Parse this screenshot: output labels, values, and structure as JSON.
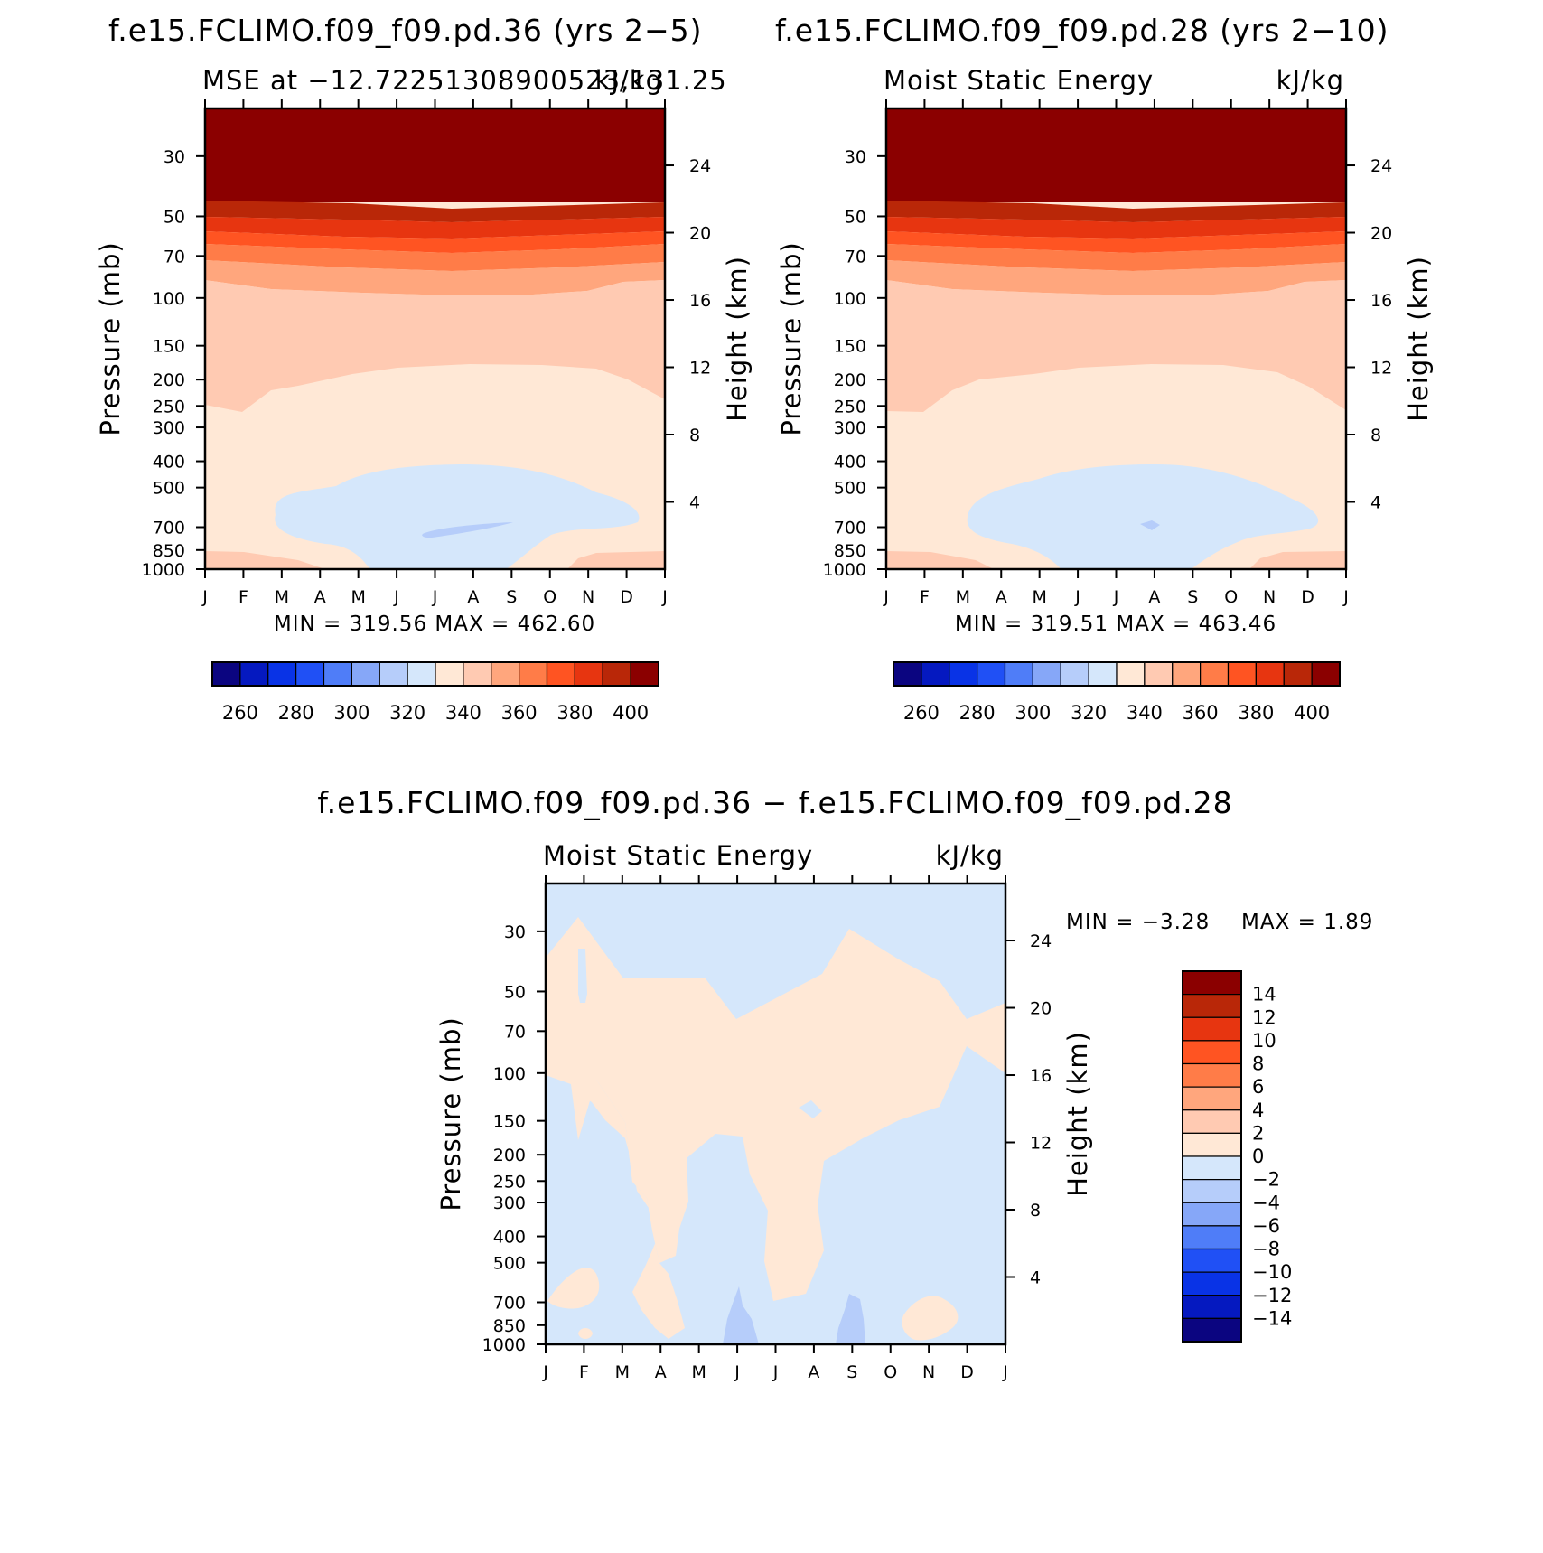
{
  "colors": {
    "mse_levels": [
      "#0b0580",
      "#0519c0",
      "#0933e6",
      "#2050f5",
      "#4f7df8",
      "#86a7f8",
      "#b6cdfa",
      "#d5e7fb",
      "#ffe8d6",
      "#ffcab2",
      "#ffa67d",
      "#ff7c48",
      "#ff5422",
      "#e73510",
      "#b92708",
      "#8b0000"
    ],
    "diff_levels": [
      "#0b0580",
      "#0519c0",
      "#0933e6",
      "#2050f5",
      "#4f7df8",
      "#86a7f8",
      "#b6cdfa",
      "#d5e7fb",
      "#ffe8d6",
      "#ffcab2",
      "#ffa67d",
      "#ff7c48",
      "#ff5422",
      "#e73510",
      "#b92708",
      "#8b0000"
    ]
  },
  "chart_data": [
    {
      "type": "heatmap",
      "title": "f.e15.FCLIMO.f09_f09.pd.36 (yrs 2−5)",
      "subtitle_left": "MSE at −12.72251308900523,131.25",
      "subtitle_right": "kJ/kg",
      "xlabel": "",
      "ylabel": "Pressure (mb)",
      "ylabel_right": "Height (km)",
      "x_ticks": [
        "J",
        "F",
        "M",
        "A",
        "M",
        "J",
        "J",
        "A",
        "S",
        "O",
        "N",
        "D",
        "J"
      ],
      "y_ticks": [
        30,
        50,
        70,
        100,
        150,
        200,
        250,
        300,
        400,
        500,
        700,
        850,
        1000
      ],
      "y_ticks_right": [
        24,
        20,
        16,
        12,
        8,
        4
      ],
      "ylim": [
        1000,
        20
      ],
      "stats": "MIN = 319.56 MAX = 462.60",
      "colorbar_labels": [
        "260",
        "280",
        "300",
        "320",
        "340",
        "360",
        "380",
        "400"
      ],
      "colorbar_levels": [
        250,
        260,
        270,
        280,
        290,
        300,
        310,
        320,
        330,
        340,
        350,
        360,
        370,
        380,
        390,
        400,
        410
      ]
    },
    {
      "type": "heatmap",
      "title": "f.e15.FCLIMO.f09_f09.pd.28 (yrs 2−10)",
      "subtitle_left": "Moist Static Energy",
      "subtitle_right": "kJ/kg",
      "xlabel": "",
      "ylabel": "Pressure (mb)",
      "ylabel_right": "Height (km)",
      "x_ticks": [
        "J",
        "F",
        "M",
        "A",
        "M",
        "J",
        "J",
        "A",
        "S",
        "O",
        "N",
        "D",
        "J"
      ],
      "y_ticks": [
        30,
        50,
        70,
        100,
        150,
        200,
        250,
        300,
        400,
        500,
        700,
        850,
        1000
      ],
      "y_ticks_right": [
        24,
        20,
        16,
        12,
        8,
        4
      ],
      "ylim": [
        1000,
        20
      ],
      "stats": "MIN = 319.51 MAX = 463.46",
      "colorbar_labels": [
        "260",
        "280",
        "300",
        "320",
        "340",
        "360",
        "380",
        "400"
      ],
      "colorbar_levels": [
        250,
        260,
        270,
        280,
        290,
        300,
        310,
        320,
        330,
        340,
        350,
        360,
        370,
        380,
        390,
        400,
        410
      ]
    },
    {
      "type": "heatmap",
      "title": "f.e15.FCLIMO.f09_f09.pd.36 − f.e15.FCLIMO.f09_f09.pd.28",
      "subtitle_left": "Moist Static Energy",
      "subtitle_right": "kJ/kg",
      "xlabel": "",
      "ylabel": "Pressure (mb)",
      "ylabel_right": "Height (km)",
      "x_ticks": [
        "J",
        "F",
        "M",
        "A",
        "M",
        "J",
        "J",
        "A",
        "S",
        "O",
        "N",
        "D",
        "J"
      ],
      "y_ticks": [
        30,
        50,
        70,
        100,
        150,
        200,
        250,
        300,
        400,
        500,
        700,
        850,
        1000
      ],
      "y_ticks_right": [
        24,
        20,
        16,
        12,
        8,
        4
      ],
      "ylim": [
        1000,
        20
      ],
      "stats_min": "MIN =   −3.28",
      "stats_max": "MAX =     1.89",
      "colorbar_labels": [
        "14",
        "12",
        "10",
        "8",
        "6",
        "4",
        "2",
        "0",
        "−2",
        "−4",
        "−6",
        "−8",
        "−10",
        "−12",
        "−14"
      ],
      "colorbar_levels": [
        -16,
        -14,
        -12,
        -10,
        -8,
        -6,
        -4,
        -2,
        0,
        2,
        4,
        6,
        8,
        10,
        12,
        14,
        16
      ]
    }
  ]
}
